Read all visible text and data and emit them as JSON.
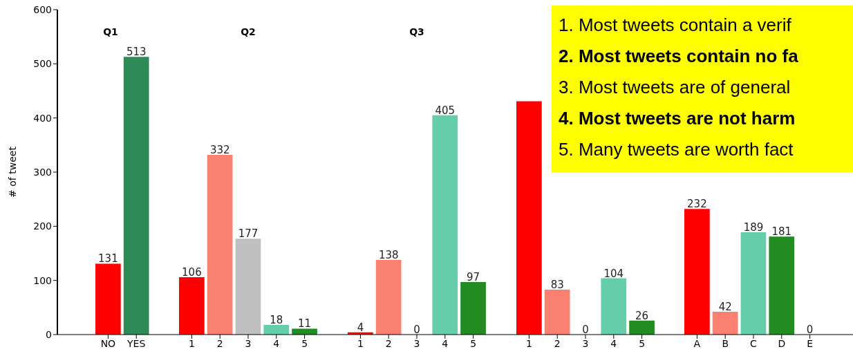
{
  "chart_data": [
    {
      "type": "bar",
      "title": "Q1",
      "ylabel": "# of tweet",
      "categories": [
        "NO",
        "YES"
      ],
      "values": [
        131,
        513
      ],
      "colors": [
        "#ff0000",
        "#2e8b57"
      ],
      "ylim": [
        0,
        600
      ],
      "yticks": [
        0,
        100,
        200,
        300,
        400,
        500,
        600
      ],
      "data_labels": true
    },
    {
      "type": "bar",
      "title": "Q2",
      "categories": [
        "1",
        "2",
        "3",
        "4",
        "5"
      ],
      "values": [
        106,
        332,
        177,
        18,
        11
      ],
      "colors": [
        "#ff0000",
        "#fa8072",
        "#c0c0c0",
        "#66cdaa",
        "#228b22"
      ],
      "ylim": [
        0,
        600
      ],
      "yticks": [
        0,
        100,
        200,
        300,
        400,
        500,
        600
      ],
      "tick_labels": "x",
      "data_labels": true
    },
    {
      "type": "bar",
      "title": "Q3",
      "categories": [
        "1",
        "2",
        "3",
        "4",
        "5"
      ],
      "values": [
        4,
        138,
        0,
        405,
        97
      ],
      "colors": [
        "#ff0000",
        "#fa8072",
        "#c0c0c0",
        "#66cdaa",
        "#228b22"
      ],
      "ylim": [
        0,
        600
      ],
      "yticks": [
        0,
        100,
        200,
        300,
        400,
        500,
        600
      ],
      "tick_labels": "x",
      "data_labels": true
    },
    {
      "type": "bar",
      "categories": [
        "1",
        "2",
        "3",
        "4",
        "5"
      ],
      "values": [
        431,
        83,
        0,
        104,
        26
      ],
      "colors": [
        "#ff0000",
        "#fa8072",
        "#c0c0c0",
        "#66cdaa",
        "#228b22"
      ],
      "ylim": [
        0,
        600
      ],
      "yticks": [
        0,
        100,
        200,
        300,
        400,
        500,
        600
      ],
      "tick_labels": "x",
      "value_labels": [
        null,
        "83",
        "0",
        "104",
        "26"
      ]
    },
    {
      "type": "bar",
      "categories": [
        "A",
        "B",
        "C",
        "D",
        "E"
      ],
      "values": [
        232,
        42,
        189,
        181,
        0
      ],
      "colors": [
        "#ff0000",
        "#fa8072",
        "#66cdaa",
        "#228b22",
        "#c0c0c0"
      ],
      "ylim": [
        0,
        600
      ],
      "yticks": [
        0,
        100,
        200,
        300,
        400,
        500,
        600
      ],
      "tick_labels": "x",
      "data_labels": true
    },
    {
      "type": "other",
      "annotations": [
        "1. Most tweets contain a verif",
        "2. Most tweets contain no fa",
        "3. Most tweets are of general",
        "4. Most tweets are not harm",
        "5. Many tweets are worth fact"
      ]
    }
  ]
}
